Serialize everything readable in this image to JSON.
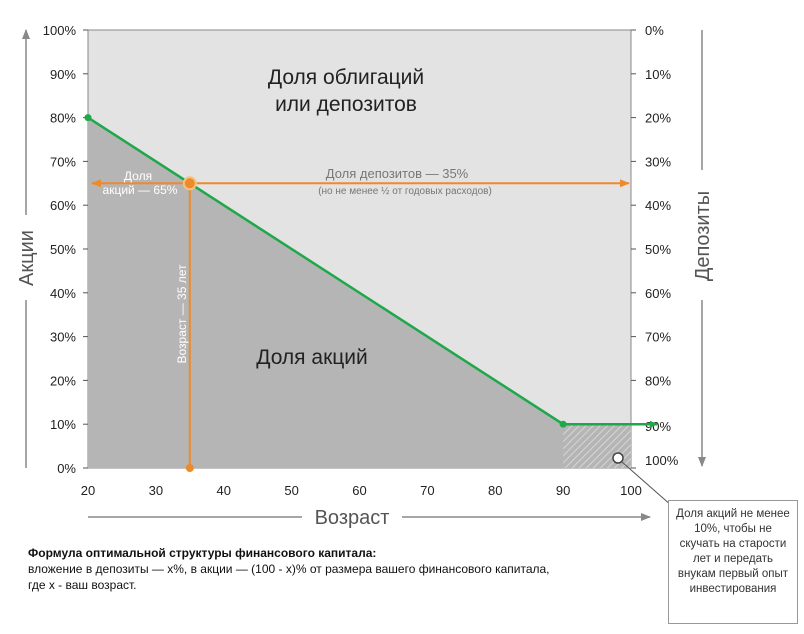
{
  "chart_data": {
    "type": "area",
    "x": [
      20,
      35,
      90,
      100
    ],
    "series": [
      {
        "name": "Доля акций",
        "values": [
          80,
          65,
          10,
          10
        ]
      }
    ],
    "xlim": [
      20,
      100
    ],
    "ylim": [
      0,
      100
    ],
    "x_ticks": [
      "20",
      "30",
      "40",
      "50",
      "60",
      "70",
      "80",
      "90",
      "100"
    ],
    "y_ticks_left": [
      "0%",
      "10%",
      "20%",
      "30%",
      "40%",
      "50%",
      "60%",
      "70%",
      "80%",
      "90%",
      "100%"
    ],
    "y_ticks_right": [
      "100%",
      "90%",
      "80%",
      "70%",
      "60%",
      "50%",
      "40%",
      "30%",
      "20%",
      "10%",
      "0%"
    ],
    "xlabel": "Возраст",
    "ylabel_left": "Акции",
    "ylabel_right": "Депозиты",
    "grid": false,
    "region_labels": {
      "bonds": [
        "Доля облигаций",
        "или депозитов"
      ],
      "stocks": "Доля акций"
    },
    "example": {
      "age": 35,
      "stocks_pct": 65,
      "stocks_label": [
        "Доля",
        "акций — 65%"
      ],
      "deposits_label": "Доля депозитов — 35%",
      "deposits_sublabel": "(но не менее ½ от годовых расходов)",
      "age_label": "Возраст — 35 лет"
    },
    "min_stocks_note": "Доля акций не менее 10%, чтобы не скучать на старости лет и передать внукам первый опыт инвестирования",
    "colors": {
      "stocks_area": "#b5b5b5",
      "bonds_area": "#e3e3e3",
      "line": "#1fa84a",
      "example": "#ef8a2b"
    }
  },
  "formula": {
    "title": "Формула оптимальной структуры финансового капитала:",
    "line1": "вложение в депозиты — x%, в акции — (100 - x)% от размера вашего финансового капитала,",
    "line2": "где x - ваш возраст."
  }
}
